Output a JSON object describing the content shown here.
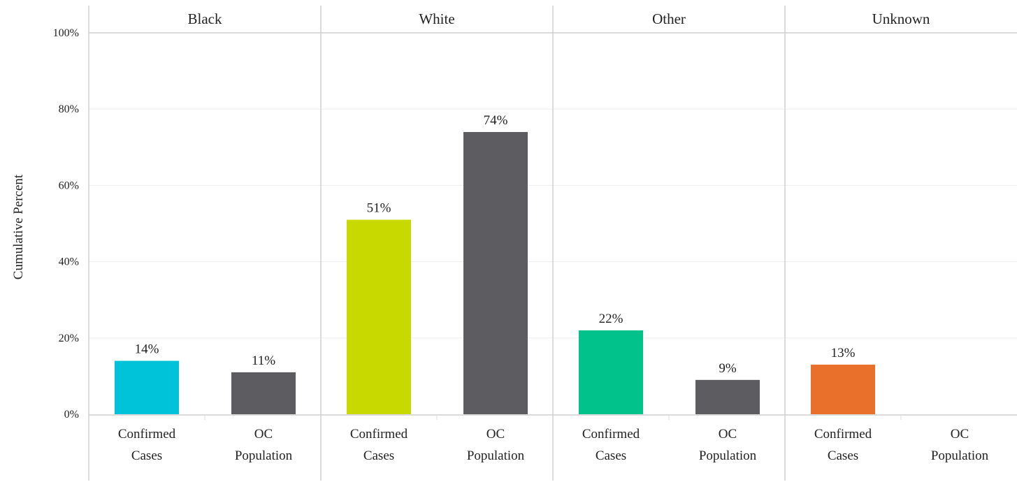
{
  "chart_data": {
    "type": "bar",
    "ylabel": "Cumulative Percent",
    "ylim": [
      0,
      100
    ],
    "yticks": [
      "0%",
      "20%",
      "40%",
      "60%",
      "80%",
      "100%"
    ],
    "ytick_values": [
      0,
      20,
      40,
      60,
      80,
      100
    ],
    "grid": "horizontal",
    "categories": [
      [
        "Confirmed",
        "Cases"
      ],
      [
        "OC",
        "Population"
      ]
    ],
    "panels": [
      {
        "title": "Black",
        "values": [
          14,
          11
        ],
        "labels": [
          "14%",
          "11%"
        ],
        "colors": [
          "#00c2d8",
          "#5d5d61"
        ]
      },
      {
        "title": "White",
        "values": [
          51,
          74
        ],
        "labels": [
          "51%",
          "74%"
        ],
        "colors": [
          "#c8d900",
          "#5d5d61"
        ]
      },
      {
        "title": "Other",
        "values": [
          22,
          9
        ],
        "labels": [
          "22%",
          "9%"
        ],
        "colors": [
          "#00c28a",
          "#5d5d61"
        ]
      },
      {
        "title": "Unknown",
        "values": [
          13,
          null
        ],
        "labels": [
          "13%",
          ""
        ],
        "colors": [
          "#e8702a",
          "#5d5d61"
        ]
      }
    ]
  }
}
